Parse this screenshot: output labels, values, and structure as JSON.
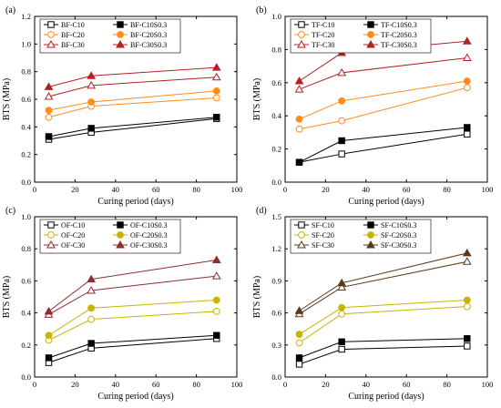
{
  "chart_data": [
    {
      "type": "line",
      "panel_label": "(a)",
      "xlabel": "Curing period (days)",
      "ylabel": "BTS (MPa)",
      "xlim": [
        0,
        100
      ],
      "ylim": [
        0.0,
        1.2
      ],
      "xticks": [
        0,
        20,
        40,
        60,
        80,
        100
      ],
      "yticks": [
        0.0,
        0.2,
        0.4,
        0.6,
        0.8,
        1.0,
        1.2
      ],
      "ytick_labels": [
        "0.0",
        "0.2",
        "0.4",
        "0.6",
        "0.8",
        "1.0",
        "1.2"
      ],
      "x": [
        7,
        28,
        90
      ],
      "legend_position": "top-left",
      "series": [
        {
          "name": "BF-C10",
          "values": [
            0.31,
            0.36,
            0.46
          ],
          "color": "#000000",
          "marker": "square-open"
        },
        {
          "name": "BF-C10S0.3",
          "values": [
            0.33,
            0.39,
            0.47
          ],
          "color": "#000000",
          "marker": "square-filled"
        },
        {
          "name": "BF-C20",
          "values": [
            0.47,
            0.55,
            0.61
          ],
          "color": "#ff8c1a",
          "marker": "circle-open"
        },
        {
          "name": "BF-C20S0.3",
          "values": [
            0.52,
            0.58,
            0.66
          ],
          "color": "#ff8c1a",
          "marker": "circle-filled"
        },
        {
          "name": "BF-C30",
          "values": [
            0.62,
            0.7,
            0.76
          ],
          "color": "#b22222",
          "marker": "triangle-open"
        },
        {
          "name": "BF-C30S0.3",
          "values": [
            0.69,
            0.77,
            0.83
          ],
          "color": "#b22222",
          "marker": "triangle-filled"
        }
      ]
    },
    {
      "type": "line",
      "panel_label": "(b)",
      "xlabel": "Curing period (days)",
      "ylabel": "BTS (MPa)",
      "xlim": [
        0,
        100
      ],
      "ylim": [
        0.0,
        1.0
      ],
      "xticks": [
        0,
        20,
        40,
        60,
        80,
        100
      ],
      "yticks": [
        0.0,
        0.2,
        0.4,
        0.6,
        0.8,
        1.0
      ],
      "ytick_labels": [
        "0.0",
        "0.2",
        "0.4",
        "0.6",
        "0.8",
        "1.0"
      ],
      "x": [
        7,
        28,
        90
      ],
      "legend_position": "top-left",
      "series": [
        {
          "name": "TF-C10",
          "values": [
            0.12,
            0.17,
            0.29
          ],
          "color": "#000000",
          "marker": "square-open"
        },
        {
          "name": "TF-C10S0.3",
          "values": [
            0.12,
            0.25,
            0.33
          ],
          "color": "#000000",
          "marker": "square-filled"
        },
        {
          "name": "TF-C20",
          "values": [
            0.32,
            0.37,
            0.57
          ],
          "color": "#ff8c1a",
          "marker": "circle-open"
        },
        {
          "name": "TF-C20S0.3",
          "values": [
            0.38,
            0.49,
            0.61
          ],
          "color": "#ff8c1a",
          "marker": "circle-filled"
        },
        {
          "name": "TF-C30",
          "values": [
            0.56,
            0.66,
            0.75
          ],
          "color": "#b22222",
          "marker": "triangle-open"
        },
        {
          "name": "TF-C30S0.3",
          "values": [
            0.61,
            0.78,
            0.85
          ],
          "color": "#b22222",
          "marker": "triangle-filled"
        }
      ]
    },
    {
      "type": "line",
      "panel_label": "(c)",
      "xlabel": "Curing period (days)",
      "ylabel": "BTS (MPa)",
      "xlim": [
        0,
        100
      ],
      "ylim": [
        0.0,
        1.0
      ],
      "xticks": [
        0,
        20,
        40,
        60,
        80,
        100
      ],
      "yticks": [
        0.0,
        0.2,
        0.4,
        0.6,
        0.8,
        1.0
      ],
      "ytick_labels": [
        "0.0",
        "0.2",
        "0.4",
        "0.6",
        "0.8",
        "1.0"
      ],
      "x": [
        7,
        28,
        90
      ],
      "legend_position": "top-left",
      "series": [
        {
          "name": "OF-C10",
          "values": [
            0.09,
            0.18,
            0.24
          ],
          "color": "#000000",
          "marker": "square-open"
        },
        {
          "name": "OF-C10S0.3",
          "values": [
            0.12,
            0.21,
            0.26
          ],
          "color": "#000000",
          "marker": "square-filled"
        },
        {
          "name": "OF-C20",
          "values": [
            0.23,
            0.36,
            0.41
          ],
          "color": "#c8b400",
          "marker": "circle-open"
        },
        {
          "name": "OF-C20S0.3",
          "values": [
            0.26,
            0.43,
            0.48
          ],
          "color": "#c8b400",
          "marker": "circle-filled"
        },
        {
          "name": "OF-C30",
          "values": [
            0.39,
            0.54,
            0.63
          ],
          "color": "#8b2e2e",
          "marker": "triangle-open"
        },
        {
          "name": "OF-C30S0.3",
          "values": [
            0.41,
            0.61,
            0.73
          ],
          "color": "#8b2e2e",
          "marker": "triangle-filled"
        }
      ]
    },
    {
      "type": "line",
      "panel_label": "(d)",
      "xlabel": "Curing period (days)",
      "ylabel": "BTS (MPa)",
      "xlim": [
        0,
        100
      ],
      "ylim": [
        0.0,
        1.5
      ],
      "xticks": [
        0,
        20,
        40,
        60,
        80,
        100
      ],
      "yticks": [
        0.0,
        0.3,
        0.6,
        0.9,
        1.2,
        1.5
      ],
      "ytick_labels": [
        "0.0",
        "0.3",
        "0.6",
        "0.9",
        "1.2",
        "1.5"
      ],
      "x": [
        7,
        28,
        90
      ],
      "legend_position": "top-left",
      "series": [
        {
          "name": "SF-C10",
          "values": [
            0.12,
            0.26,
            0.29
          ],
          "color": "#000000",
          "marker": "square-open"
        },
        {
          "name": "SF-C10S0.3",
          "values": [
            0.18,
            0.33,
            0.36
          ],
          "color": "#000000",
          "marker": "square-filled"
        },
        {
          "name": "SF-C20",
          "values": [
            0.32,
            0.59,
            0.66
          ],
          "color": "#c8b400",
          "marker": "circle-open"
        },
        {
          "name": "SF-C20S0.3",
          "values": [
            0.4,
            0.65,
            0.72
          ],
          "color": "#c8b400",
          "marker": "circle-filled"
        },
        {
          "name": "SF-C30",
          "values": [
            0.59,
            0.84,
            1.08
          ],
          "color": "#5a3a1a",
          "marker": "triangle-open"
        },
        {
          "name": "SF-C30S0.3",
          "values": [
            0.62,
            0.88,
            1.16
          ],
          "color": "#5a3a1a",
          "marker": "triangle-filled"
        }
      ]
    }
  ]
}
